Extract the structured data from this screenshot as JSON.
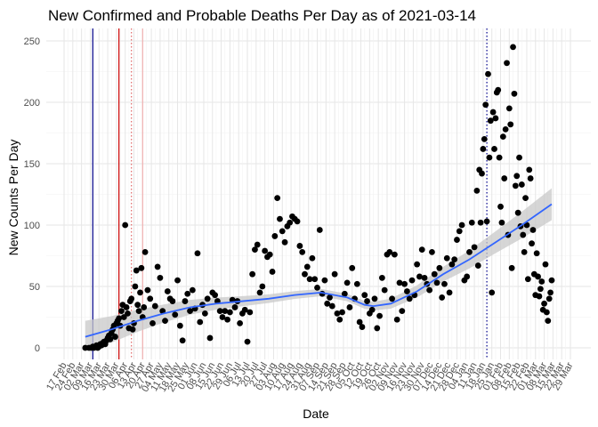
{
  "chart_data": {
    "type": "scatter",
    "title": "New Confirmed and Probable Deaths Per Day as of 2021-03-14",
    "xlabel": "Date",
    "ylabel": "New Counts Per Day",
    "ylim": [
      0,
      250
    ],
    "yticks": [
      0,
      50,
      100,
      150,
      200,
      250
    ],
    "xlim": [
      "2020-02-17",
      "2021-03-29"
    ],
    "xticks": [
      {
        "date": "2020-02-17",
        "label": "17 Feb"
      },
      {
        "date": "2020-02-24",
        "label": "24 Feb"
      },
      {
        "date": "2020-03-02",
        "label": "02 Mar"
      },
      {
        "date": "2020-03-09",
        "label": "09 Mar"
      },
      {
        "date": "2020-03-16",
        "label": "16 Mar"
      },
      {
        "date": "2020-03-23",
        "label": "23 Mar"
      },
      {
        "date": "2020-03-30",
        "label": "30 Mar"
      },
      {
        "date": "2020-04-06",
        "label": "06 Apr"
      },
      {
        "date": "2020-04-13",
        "label": "13 Apr"
      },
      {
        "date": "2020-04-20",
        "label": "20 Apr"
      },
      {
        "date": "2020-04-27",
        "label": "27 Apr"
      },
      {
        "date": "2020-05-04",
        "label": "04 May"
      },
      {
        "date": "2020-05-11",
        "label": "11 May"
      },
      {
        "date": "2020-05-18",
        "label": "18 May"
      },
      {
        "date": "2020-05-25",
        "label": "25 May"
      },
      {
        "date": "2020-06-01",
        "label": "01 Jun"
      },
      {
        "date": "2020-06-08",
        "label": "08 Jun"
      },
      {
        "date": "2020-06-15",
        "label": "15 Jun"
      },
      {
        "date": "2020-06-22",
        "label": "22 Jun"
      },
      {
        "date": "2020-06-29",
        "label": "29 Jun"
      },
      {
        "date": "2020-07-06",
        "label": "06 Jul"
      },
      {
        "date": "2020-07-13",
        "label": "13 Jul"
      },
      {
        "date": "2020-07-20",
        "label": "20 Jul"
      },
      {
        "date": "2020-07-27",
        "label": "27 Jul"
      },
      {
        "date": "2020-08-03",
        "label": "03 Aug"
      },
      {
        "date": "2020-08-10",
        "label": "10 Aug"
      },
      {
        "date": "2020-08-17",
        "label": "17 Aug"
      },
      {
        "date": "2020-08-24",
        "label": "24 Aug"
      },
      {
        "date": "2020-08-31",
        "label": "31 Aug"
      },
      {
        "date": "2020-09-07",
        "label": "07 Sep"
      },
      {
        "date": "2020-09-14",
        "label": "14 Sep"
      },
      {
        "date": "2020-09-21",
        "label": "21 Sep"
      },
      {
        "date": "2020-09-28",
        "label": "28 Sep"
      },
      {
        "date": "2020-10-05",
        "label": "05 Oct"
      },
      {
        "date": "2020-10-12",
        "label": "12 Oct"
      },
      {
        "date": "2020-10-19",
        "label": "19 Oct"
      },
      {
        "date": "2020-10-26",
        "label": "26 Oct"
      },
      {
        "date": "2020-11-02",
        "label": "02 Nov"
      },
      {
        "date": "2020-11-09",
        "label": "09 Nov"
      },
      {
        "date": "2020-11-16",
        "label": "16 Nov"
      },
      {
        "date": "2020-11-23",
        "label": "23 Nov"
      },
      {
        "date": "2020-11-30",
        "label": "30 Nov"
      },
      {
        "date": "2020-12-07",
        "label": "07 Dec"
      },
      {
        "date": "2020-12-14",
        "label": "14 Dec"
      },
      {
        "date": "2020-12-21",
        "label": "21 Dec"
      },
      {
        "date": "2020-12-28",
        "label": "28 Dec"
      },
      {
        "date": "2021-01-04",
        "label": "04 Jan"
      },
      {
        "date": "2021-01-11",
        "label": "11 Jan"
      },
      {
        "date": "2021-01-18",
        "label": "18 Jan"
      },
      {
        "date": "2021-01-25",
        "label": "25 Jan"
      },
      {
        "date": "2021-02-01",
        "label": "01 Feb"
      },
      {
        "date": "2021-02-08",
        "label": "08 Feb"
      },
      {
        "date": "2021-02-15",
        "label": "15 Feb"
      },
      {
        "date": "2021-02-22",
        "label": "22 Feb"
      },
      {
        "date": "2021-03-01",
        "label": "01 Mar"
      },
      {
        "date": "2021-03-08",
        "label": "08 Mar"
      },
      {
        "date": "2021-03-15",
        "label": "15 Mar"
      },
      {
        "date": "2021-03-22",
        "label": "22 Mar"
      },
      {
        "date": "2021-03-29",
        "label": "29 Mar"
      }
    ],
    "grid": true,
    "vlines": [
      {
        "date": "2020-03-11",
        "color": "#00008b",
        "style": "solid"
      },
      {
        "date": "2020-04-01",
        "color": "#cc0000",
        "style": "solid"
      },
      {
        "date": "2020-04-11",
        "color": "#e06666",
        "style": "dotted"
      },
      {
        "date": "2020-04-20",
        "color": "#f0b0b0",
        "style": "solid"
      },
      {
        "date": "2021-01-21",
        "color": "#00008b",
        "style": "dotted"
      }
    ],
    "colors": {
      "points": "#000000",
      "smooth_line": "#3366ff",
      "confidence_band": "#c8c8c8"
    },
    "x": [
      "2020-03-05",
      "2020-03-08",
      "2020-03-10",
      "2020-03-11",
      "2020-03-12",
      "2020-03-13",
      "2020-03-14",
      "2020-03-15",
      "2020-03-16",
      "2020-03-17",
      "2020-03-18",
      "2020-03-19",
      "2020-03-20",
      "2020-03-21",
      "2020-03-22",
      "2020-03-23",
      "2020-03-24",
      "2020-03-25",
      "2020-03-26",
      "2020-03-27",
      "2020-03-28",
      "2020-03-29",
      "2020-03-30",
      "2020-03-31",
      "2020-04-01",
      "2020-04-02",
      "2020-04-03",
      "2020-04-04",
      "2020-04-05",
      "2020-04-06",
      "2020-04-07",
      "2020-04-08",
      "2020-04-09",
      "2020-04-10",
      "2020-04-11",
      "2020-04-12",
      "2020-04-13",
      "2020-04-14",
      "2020-04-15",
      "2020-04-16",
      "2020-04-17",
      "2020-04-18",
      "2020-04-19",
      "2020-04-20",
      "2020-04-21",
      "2020-04-22",
      "2020-04-24",
      "2020-04-26",
      "2020-04-28",
      "2020-04-30",
      "2020-05-02",
      "2020-05-04",
      "2020-05-06",
      "2020-05-08",
      "2020-05-10",
      "2020-05-12",
      "2020-05-14",
      "2020-05-16",
      "2020-05-18",
      "2020-05-20",
      "2020-05-22",
      "2020-05-24",
      "2020-05-26",
      "2020-05-28",
      "2020-05-30",
      "2020-06-01",
      "2020-06-03",
      "2020-06-05",
      "2020-06-07",
      "2020-06-09",
      "2020-06-11",
      "2020-06-13",
      "2020-06-15",
      "2020-06-17",
      "2020-06-19",
      "2020-06-21",
      "2020-06-23",
      "2020-06-25",
      "2020-06-27",
      "2020-06-29",
      "2020-07-01",
      "2020-07-03",
      "2020-07-05",
      "2020-07-07",
      "2020-07-09",
      "2020-07-11",
      "2020-07-13",
      "2020-07-15",
      "2020-07-17",
      "2020-07-19",
      "2020-07-21",
      "2020-07-23",
      "2020-07-25",
      "2020-07-27",
      "2020-07-29",
      "2020-07-31",
      "2020-08-02",
      "2020-08-04",
      "2020-08-06",
      "2020-08-08",
      "2020-08-10",
      "2020-08-12",
      "2020-08-14",
      "2020-08-16",
      "2020-08-18",
      "2020-08-20",
      "2020-08-22",
      "2020-08-24",
      "2020-08-26",
      "2020-08-28",
      "2020-08-30",
      "2020-09-01",
      "2020-09-03",
      "2020-09-05",
      "2020-09-07",
      "2020-09-09",
      "2020-09-11",
      "2020-09-13",
      "2020-09-15",
      "2020-09-17",
      "2020-09-19",
      "2020-09-21",
      "2020-09-23",
      "2020-09-25",
      "2020-09-27",
      "2020-09-29",
      "2020-10-01",
      "2020-10-03",
      "2020-10-05",
      "2020-10-07",
      "2020-10-09",
      "2020-10-11",
      "2020-10-13",
      "2020-10-15",
      "2020-10-17",
      "2020-10-19",
      "2020-10-21",
      "2020-10-23",
      "2020-10-25",
      "2020-10-27",
      "2020-10-29",
      "2020-10-31",
      "2020-11-02",
      "2020-11-04",
      "2020-11-06",
      "2020-11-08",
      "2020-11-10",
      "2020-11-12",
      "2020-11-14",
      "2020-11-16",
      "2020-11-18",
      "2020-11-20",
      "2020-11-22",
      "2020-11-24",
      "2020-11-26",
      "2020-11-28",
      "2020-11-30",
      "2020-12-02",
      "2020-12-04",
      "2020-12-06",
      "2020-12-08",
      "2020-12-10",
      "2020-12-12",
      "2020-12-14",
      "2020-12-16",
      "2020-12-18",
      "2020-12-20",
      "2020-12-22",
      "2020-12-24",
      "2020-12-26",
      "2020-12-28",
      "2020-12-30",
      "2021-01-01",
      "2021-01-03",
      "2021-01-05",
      "2021-01-07",
      "2021-01-09",
      "2021-01-11",
      "2021-01-13",
      "2021-01-14",
      "2021-01-15",
      "2021-01-16",
      "2021-01-17",
      "2021-01-18",
      "2021-01-19",
      "2021-01-20",
      "2021-01-21",
      "2021-01-22",
      "2021-01-23",
      "2021-01-24",
      "2021-01-25",
      "2021-01-26",
      "2021-01-27",
      "2021-01-28",
      "2021-01-29",
      "2021-01-30",
      "2021-01-31",
      "2021-02-01",
      "2021-02-02",
      "2021-02-03",
      "2021-02-04",
      "2021-02-05",
      "2021-02-06",
      "2021-02-07",
      "2021-02-08",
      "2021-02-09",
      "2021-02-10",
      "2021-02-11",
      "2021-02-12",
      "2021-02-13",
      "2021-02-14",
      "2021-02-15",
      "2021-02-16",
      "2021-02-17",
      "2021-02-18",
      "2021-02-19",
      "2021-02-20",
      "2021-02-21",
      "2021-02-22",
      "2021-02-23",
      "2021-02-24",
      "2021-02-25",
      "2021-02-26",
      "2021-02-27",
      "2021-02-28",
      "2021-03-01",
      "2021-03-02",
      "2021-03-03",
      "2021-03-04",
      "2021-03-05",
      "2021-03-06",
      "2021-03-07",
      "2021-03-08",
      "2021-03-09",
      "2021-03-10",
      "2021-03-11",
      "2021-03-12",
      "2021-03-13",
      "2021-03-14"
    ],
    "y": [
      0,
      0,
      0,
      1,
      0,
      1,
      2,
      0,
      1,
      3,
      2,
      4,
      5,
      3,
      6,
      8,
      10,
      7,
      12,
      15,
      18,
      9,
      20,
      22,
      24,
      18,
      30,
      35,
      25,
      100,
      33,
      28,
      16,
      38,
      40,
      15,
      20,
      50,
      63,
      35,
      30,
      45,
      65,
      25,
      33,
      78,
      47,
      40,
      20,
      34,
      66,
      57,
      30,
      22,
      46,
      40,
      38,
      27,
      55,
      18,
      6,
      38,
      44,
      30,
      47,
      32,
      77,
      21,
      35,
      28,
      40,
      8,
      45,
      43,
      38,
      30,
      25,
      30,
      23,
      29,
      39,
      33,
      38,
      20,
      28,
      31,
      5,
      29,
      60,
      80,
      84,
      45,
      50,
      79,
      74,
      76,
      62,
      91,
      122,
      105,
      95,
      86,
      99,
      102,
      107,
      105,
      103,
      83,
      78,
      60,
      66,
      56,
      73,
      56,
      49,
      96,
      44,
      55,
      36,
      41,
      34,
      60,
      28,
      23,
      29,
      44,
      53,
      33,
      65,
      40,
      52,
      21,
      17,
      43,
      38,
      28,
      31,
      40,
      16,
      26,
      57,
      47,
      76,
      78,
      40,
      76,
      23,
      53,
      30,
      52,
      46,
      40,
      55,
      43,
      68,
      58,
      80,
      57,
      52,
      47,
      78,
      60,
      53,
      65,
      41,
      52,
      73,
      45,
      68,
      72,
      88,
      95,
      100,
      55,
      58,
      78,
      102,
      82,
      128,
      67,
      145,
      102,
      142,
      162,
      170,
      198,
      103,
      223,
      155,
      185,
      45,
      192,
      162,
      187,
      208,
      210,
      155,
      115,
      102,
      172,
      138,
      178,
      232,
      92,
      195,
      182,
      65,
      245,
      207,
      132,
      140,
      110,
      155,
      99,
      133,
      92,
      78,
      122,
      100,
      56,
      145,
      138,
      85,
      96,
      60,
      43,
      77,
      58,
      42,
      48,
      54,
      31,
      36,
      68,
      29,
      22,
      40,
      45,
      55
    ],
    "smooth_x": [
      "2020-03-05",
      "2020-03-26",
      "2020-04-16",
      "2020-05-07",
      "2020-05-28",
      "2020-06-18",
      "2020-07-09",
      "2020-07-30",
      "2020-08-20",
      "2020-09-10",
      "2020-10-01",
      "2020-10-15",
      "2020-10-22",
      "2020-11-05",
      "2020-11-26",
      "2020-12-17",
      "2021-01-07",
      "2021-01-28",
      "2021-02-18",
      "2021-03-14"
    ],
    "smooth_y": [
      9,
      15,
      22,
      28,
      33,
      36,
      38,
      40,
      43,
      45,
      41,
      35,
      34,
      36,
      46,
      60,
      72,
      86,
      100,
      117
    ]
  }
}
